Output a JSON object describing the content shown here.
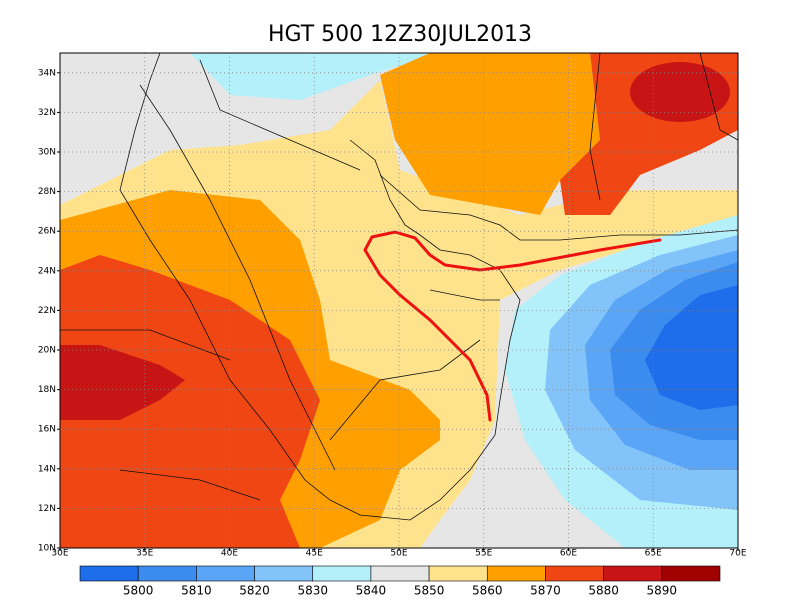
{
  "title": "HGT 500 12Z30JUL2013",
  "lon_ticks": [
    "30E",
    "35E",
    "40E",
    "45E",
    "50E",
    "55E",
    "60E",
    "65E",
    "70E"
  ],
  "lat_ticks": [
    "10N",
    "12N",
    "14N",
    "16N",
    "18N",
    "20N",
    "22N",
    "24N",
    "26N",
    "28N",
    "30N",
    "32N",
    "34N"
  ],
  "colorbar": {
    "labels": [
      5800,
      5810,
      5820,
      5830,
      5840,
      5850,
      5860,
      5870,
      5880,
      5890
    ],
    "colors": [
      "#1e6eeb",
      "#3c8cf0",
      "#5aa5f5",
      "#82c3fa",
      "#b4f0fa",
      "#e6e6e6",
      "#fee38c",
      "#ffa000",
      "#f04614",
      "#c81414",
      "#a00000"
    ]
  }
}
